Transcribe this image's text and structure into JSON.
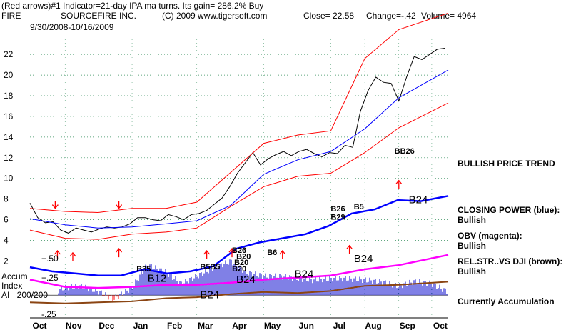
{
  "header": {
    "line1": "(Red arrows)#1 Indicator=21-day IPA ma turns. Its gain= 286.2% Buy",
    "ticker": "FIRE",
    "company": "SOURCEFIRE INC.",
    "copyright": "(C) 2009 www.tigersoft.com",
    "close": "Close=  22.58",
    "change": "Change=-.42",
    "volume": "Volume=  4964",
    "date_range": "9/30/2008-10/16/2009"
  },
  "labels": {
    "trend": "BULLISH PRICE TREND",
    "cp1": "CLOSING POWER (blue):",
    "cp2": "Bullish",
    "obv1": "OBV (magenta):",
    "obv2": "Bullish",
    "rel1": "REL.STR..VS DJI (brown):",
    "rel2": "Bullish",
    "accum_state": "Currently Accumulation",
    "accum1": "Accum",
    "accum2": "Index",
    "accum3": "AI= 200/200",
    "acc_hi": "+.50",
    "acc_mid": "+.25",
    "acc_lo": "-.25"
  },
  "signals": [
    {
      "text": "B24",
      "x": "2009-09-10",
      "y": 7.6
    },
    {
      "text": "B26",
      "x": "2009-07-01",
      "y": 6.8
    },
    {
      "text": "B29",
      "x": "2009-07-01",
      "y": 6.0
    },
    {
      "text": "B5",
      "x": "2009-07-22",
      "y": 7.0
    },
    {
      "text": "BB26",
      "x": "2009-08-28",
      "y": 12.4
    },
    {
      "text": "B6",
      "x": "2009-05-04",
      "y": 2.6
    },
    {
      "text": "B5",
      "x": "2009-03-04",
      "y": 1.2
    },
    {
      "text": "B5",
      "x": "2009-03-13",
      "y": 1.2
    },
    {
      "text": "B26",
      "x": "2009-04-02",
      "y": 2.8
    },
    {
      "text": "B20",
      "x": "2009-04-06",
      "y": 2.2
    },
    {
      "text": "B20",
      "x": "2009-04-04",
      "y": 1.6
    },
    {
      "text": "B20",
      "x": "2009-04-02",
      "y": 1.0
    },
    {
      "text": "B35",
      "x": "2009-01-05",
      "y": 1.0
    },
    {
      "text": "B24",
      "x": "2009-05-29",
      "y": 0.4
    },
    {
      "text": "B24",
      "x": "2009-07-22",
      "y": 1.9
    },
    {
      "text": "B12",
      "x": "2009-01-15",
      "y": 0.0
    },
    {
      "text": "B24",
      "x": "2009-03-04",
      "y": -1.6
    },
    {
      "text": "B24",
      "x": "2009-04-06",
      "y": -0.1
    }
  ],
  "chart_data": {
    "type": "line",
    "xlabel": "",
    "ylabel": "",
    "x_ticks": [
      "Oct",
      "Nov",
      "Dec",
      "Jan",
      "Feb",
      "Mar",
      "Apr",
      "May",
      "Jun",
      "Jul",
      "Aug",
      "Sep",
      "Oct"
    ],
    "y_ticks": [
      2,
      4,
      6,
      8,
      10,
      12,
      14,
      16,
      18,
      20,
      22
    ],
    "ylim": [
      -3.5,
      24.5
    ],
    "grid": true,
    "series": [
      {
        "name": "",
        "color": "#000000",
        "x": [
          "2008-09-30",
          "2008-10-07",
          "2008-10-14",
          "2008-10-21",
          "2008-10-28",
          "2008-11-04",
          "2008-11-11",
          "2008-11-18",
          "2008-11-25",
          "2008-12-02",
          "2008-12-09",
          "2008-12-16",
          "2008-12-23",
          "2008-12-30",
          "2009-01-06",
          "2009-01-13",
          "2009-01-20",
          "2009-01-27",
          "2009-02-03",
          "2009-02-10",
          "2009-02-17",
          "2009-02-24",
          "2009-03-03",
          "2009-03-10",
          "2009-03-17",
          "2009-03-24",
          "2009-03-31",
          "2009-04-07",
          "2009-04-14",
          "2009-04-21",
          "2009-04-28",
          "2009-05-05",
          "2009-05-12",
          "2009-05-19",
          "2009-05-26",
          "2009-06-02",
          "2009-06-09",
          "2009-06-16",
          "2009-06-23",
          "2009-06-30",
          "2009-07-07",
          "2009-07-14",
          "2009-07-21",
          "2009-07-28",
          "2009-08-04",
          "2009-08-11",
          "2009-08-18",
          "2009-08-25",
          "2009-09-01",
          "2009-09-08",
          "2009-09-15",
          "2009-09-22",
          "2009-09-29",
          "2009-10-06",
          "2009-10-13"
        ],
        "values": [
          7.6,
          6.2,
          5.7,
          5.8,
          5.0,
          4.7,
          5.2,
          5.0,
          4.8,
          5.1,
          5.3,
          5.2,
          5.3,
          5.6,
          6.2,
          6.2,
          6.0,
          5.9,
          6.5,
          6.3,
          6.0,
          6.5,
          6.6,
          6.9,
          7.5,
          8.1,
          9.2,
          10.5,
          11.5,
          12.5,
          11.3,
          11.9,
          12.3,
          12.6,
          12.2,
          12.6,
          12.8,
          12.4,
          12.1,
          12.5,
          12.4,
          13.2,
          13.0,
          16.5,
          18.5,
          19.8,
          19.3,
          19.2,
          17.5,
          19.8,
          21.8,
          21.5,
          22.0,
          22.5,
          22.6
        ]
      },
      {
        "name": "",
        "color": "#ff0000",
        "x": [
          "2008-09-30",
          "2008-11-01",
          "2008-12-01",
          "2009-01-01",
          "2009-02-01",
          "2009-03-01",
          "2009-04-01",
          "2009-05-01",
          "2009-06-01",
          "2009-07-01",
          "2009-08-01",
          "2009-09-01",
          "2009-10-16"
        ],
        "values": [
          7.1,
          6.8,
          6.7,
          7.1,
          7.1,
          7.7,
          10.6,
          13.4,
          14.2,
          14.6,
          21.6,
          24.4,
          26.0
        ]
      },
      {
        "name": "",
        "color": "#ff0000",
        "x": [
          "2008-09-30",
          "2008-11-01",
          "2008-12-01",
          "2009-01-01",
          "2009-02-01",
          "2009-03-01",
          "2009-04-01",
          "2009-05-01",
          "2009-06-01",
          "2009-07-01",
          "2009-08-01",
          "2009-09-01",
          "2009-10-16"
        ],
        "values": [
          5.0,
          4.2,
          4.1,
          4.6,
          4.8,
          5.2,
          7.3,
          9.2,
          10.2,
          10.5,
          12.5,
          14.9,
          17.3
        ]
      },
      {
        "name": "",
        "color": "#0000ff",
        "x": [
          "2008-09-30",
          "2008-11-01",
          "2008-12-01",
          "2009-01-01",
          "2009-02-01",
          "2009-03-01",
          "2009-04-01",
          "2009-05-01",
          "2009-06-01",
          "2009-07-01",
          "2009-08-01",
          "2009-09-01",
          "2009-10-16"
        ],
        "values": [
          6.1,
          5.5,
          5.2,
          5.3,
          5.6,
          5.9,
          7.4,
          10.4,
          11.8,
          12.6,
          14.8,
          17.8,
          20.5
        ]
      },
      {
        "name": "Closing Power",
        "color": "#0000ff",
        "x": [
          "2008-09-30",
          "2008-10-20",
          "2008-11-10",
          "2008-12-01",
          "2008-12-22",
          "2009-01-12",
          "2009-02-02",
          "2009-02-23",
          "2009-03-16",
          "2009-04-06",
          "2009-04-27",
          "2009-05-18",
          "2009-06-08",
          "2009-06-29",
          "2009-07-20",
          "2009-08-10",
          "2009-08-31",
          "2009-09-21",
          "2009-10-16"
        ],
        "values": [
          1.4,
          1.0,
          0.8,
          0.6,
          0.6,
          1.2,
          0.8,
          1.0,
          1.5,
          3.2,
          3.8,
          4.2,
          4.6,
          5.4,
          6.6,
          7.0,
          7.9,
          7.8,
          8.3
        ]
      },
      {
        "name": "OBV",
        "color": "#ff00ff",
        "x": [
          "2008-09-30",
          "2008-11-01",
          "2008-12-01",
          "2009-01-01",
          "2009-02-01",
          "2009-03-01",
          "2009-04-01",
          "2009-05-01",
          "2009-06-01",
          "2009-07-01",
          "2009-08-01",
          "2009-09-01",
          "2009-10-16"
        ],
        "values": [
          0.2,
          -0.5,
          -0.6,
          -0.5,
          -0.3,
          -0.3,
          -0.1,
          0.2,
          0.4,
          0.6,
          1.2,
          1.6,
          2.6
        ]
      },
      {
        "name": "Rel. Str. vs DJI",
        "color": "#8b4513",
        "x": [
          "2008-09-30",
          "2008-11-01",
          "2008-12-01",
          "2009-01-01",
          "2009-02-01",
          "2009-03-01",
          "2009-04-01",
          "2009-05-01",
          "2009-06-01",
          "2009-07-01",
          "2009-08-01",
          "2009-09-01",
          "2009-10-16"
        ],
        "values": [
          -2.0,
          -2.1,
          -2.0,
          -1.9,
          -1.6,
          -1.5,
          -1.2,
          -1.0,
          -1.1,
          -0.9,
          -0.4,
          -0.3,
          0.0
        ]
      }
    ],
    "accum_index": {
      "x": [
        "2008-10-01",
        "2008-10-15",
        "2008-11-01",
        "2008-11-15",
        "2008-12-01",
        "2008-12-15",
        "2009-01-01",
        "2009-01-15",
        "2009-02-01",
        "2009-02-15",
        "2009-03-01",
        "2009-03-15",
        "2009-04-01",
        "2009-04-15",
        "2009-05-01",
        "2009-05-15",
        "2009-06-01",
        "2009-06-15",
        "2009-07-01",
        "2009-07-15",
        "2009-08-01",
        "2009-08-15",
        "2009-09-01",
        "2009-09-15",
        "2009-10-01",
        "2009-10-15"
      ],
      "values": [
        -0.25,
        0.0,
        0.1,
        0.12,
        0.05,
        -0.05,
        0.1,
        0.4,
        0.3,
        0.15,
        0.25,
        0.35,
        0.45,
        0.3,
        0.25,
        0.25,
        0.22,
        0.2,
        0.22,
        0.22,
        0.2,
        0.18,
        0.12,
        0.18,
        0.15,
        0.05
      ],
      "ylim": [
        -0.3,
        0.55
      ]
    }
  }
}
